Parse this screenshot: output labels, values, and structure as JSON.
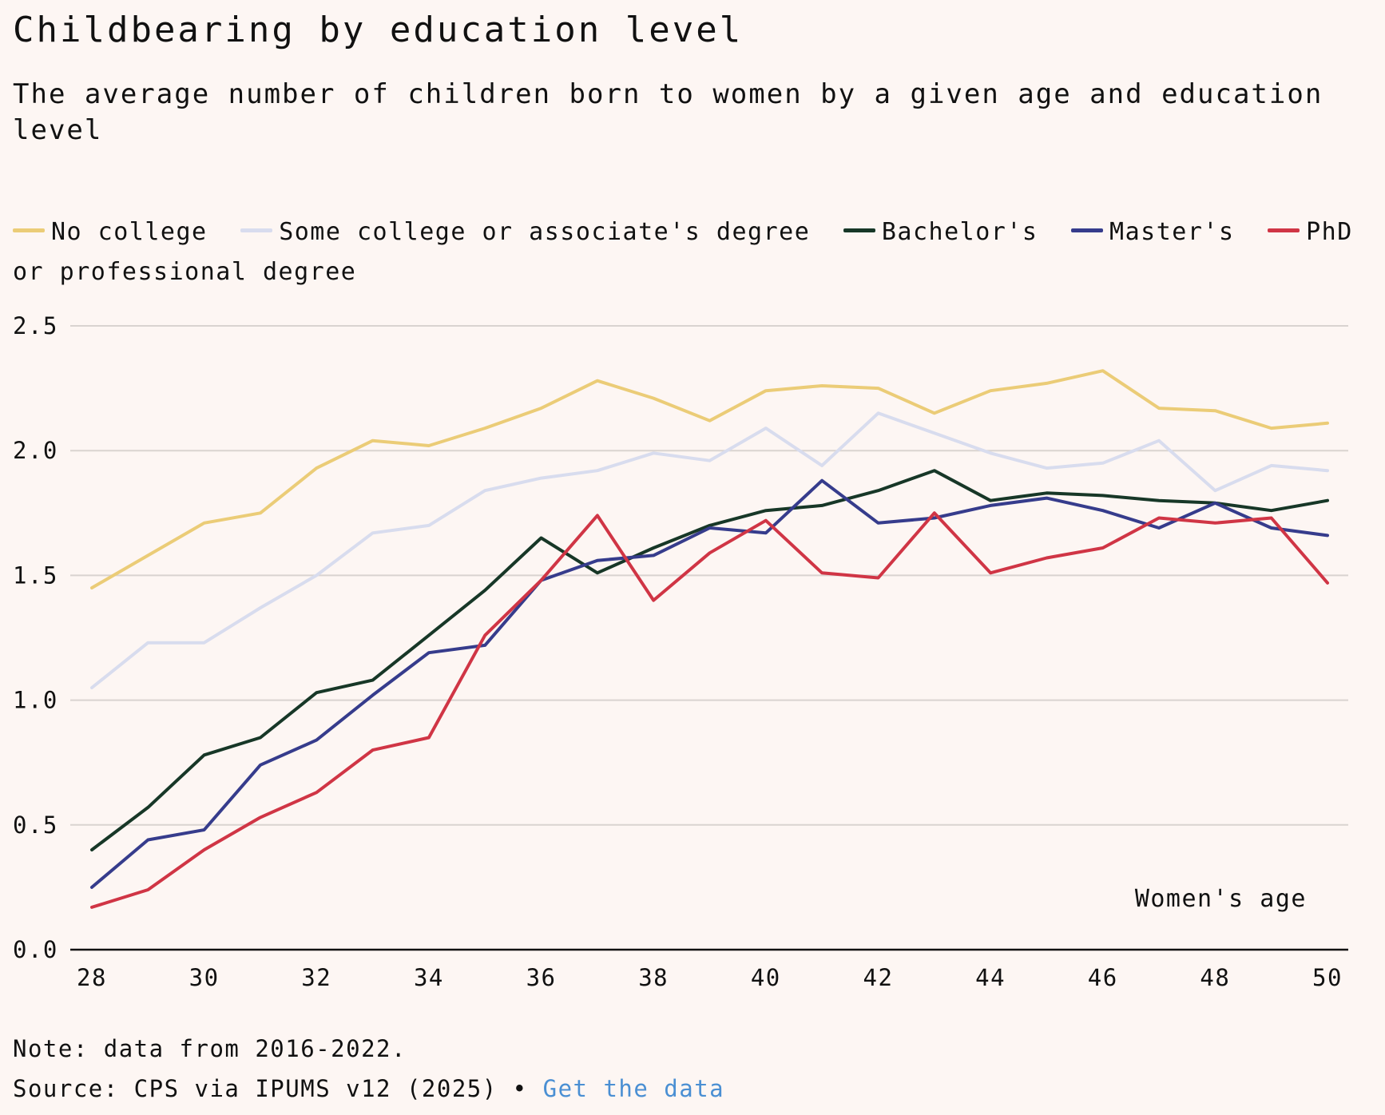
{
  "chart_data": {
    "type": "line",
    "title": "Childbearing by education level",
    "subtitle": "The average number of children born to women by a given age and education level",
    "xlabel": "Women's age",
    "ylabel": "",
    "xlim": [
      28,
      50
    ],
    "ylim": [
      0,
      2.5
    ],
    "x_ticks": [
      "28",
      "30",
      "32",
      "34",
      "36",
      "38",
      "40",
      "42",
      "44",
      "46",
      "48",
      "50"
    ],
    "y_ticks": [
      "0.0",
      "0.5",
      "1.0",
      "1.5",
      "2.0",
      "2.5"
    ],
    "grid": true,
    "legend_position": "top",
    "x": [
      28,
      29,
      30,
      31,
      32,
      33,
      34,
      35,
      36,
      37,
      38,
      39,
      40,
      41,
      42,
      43,
      44,
      45,
      46,
      47,
      48,
      49,
      50
    ],
    "series": [
      {
        "name": "No college",
        "color": "#ebcc77",
        "values": [
          1.45,
          1.58,
          1.71,
          1.75,
          1.93,
          2.04,
          2.02,
          2.09,
          2.17,
          2.28,
          2.21,
          2.12,
          2.24,
          2.26,
          2.25,
          2.15,
          2.24,
          2.27,
          2.32,
          2.17,
          2.16,
          2.09,
          2.11
        ]
      },
      {
        "name": "Some college or associate's degree",
        "color": "#d8dcee",
        "values": [
          1.05,
          1.23,
          1.23,
          1.37,
          1.5,
          1.67,
          1.7,
          1.84,
          1.89,
          1.92,
          1.99,
          1.96,
          2.09,
          1.94,
          2.15,
          2.07,
          1.99,
          1.93,
          1.95,
          2.04,
          1.84,
          1.94,
          1.92
        ]
      },
      {
        "name": "Bachelor's",
        "color": "#173727",
        "values": [
          0.4,
          0.57,
          0.78,
          0.85,
          1.03,
          1.08,
          1.26,
          1.44,
          1.65,
          1.51,
          1.61,
          1.7,
          1.76,
          1.78,
          1.84,
          1.92,
          1.8,
          1.83,
          1.82,
          1.8,
          1.79,
          1.76,
          1.8
        ]
      },
      {
        "name": "Master's",
        "color": "#363c8c",
        "values": [
          0.25,
          0.44,
          0.48,
          0.74,
          0.84,
          1.02,
          1.19,
          1.22,
          1.48,
          1.56,
          1.58,
          1.69,
          1.67,
          1.88,
          1.71,
          1.73,
          1.78,
          1.81,
          1.76,
          1.69,
          1.79,
          1.69,
          1.66
        ]
      },
      {
        "name": "PhD or professional degree",
        "color": "#d03545",
        "values": [
          0.17,
          0.24,
          0.4,
          0.53,
          0.63,
          0.8,
          0.85,
          1.26,
          1.48,
          1.74,
          1.4,
          1.59,
          1.72,
          1.51,
          1.49,
          1.75,
          1.51,
          1.57,
          1.61,
          1.73,
          1.71,
          1.73,
          1.47
        ]
      }
    ],
    "note": "Note: data from 2016-2022.",
    "source": "Source: CPS via IPUMS v12 (2025)",
    "source_separator": "•",
    "source_link": "Get the data"
  }
}
